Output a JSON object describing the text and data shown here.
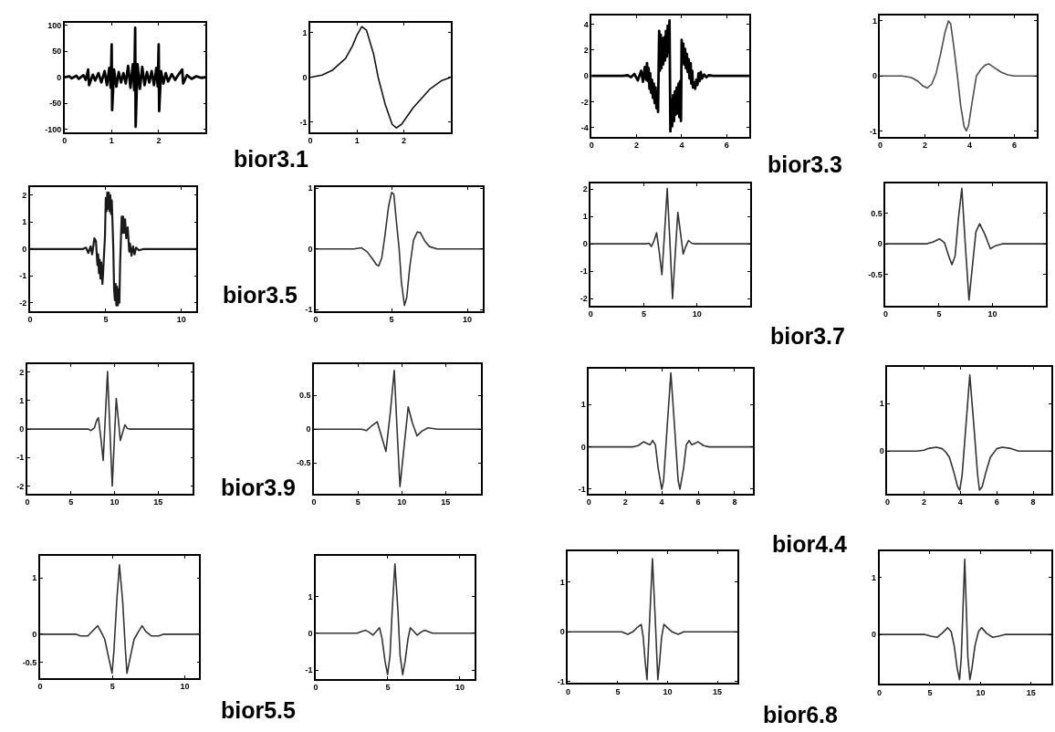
{
  "chart_data": [
    {
      "type": "line",
      "color": "#000000",
      "xlim": [
        0,
        3
      ],
      "ylim": [
        -105,
        105
      ],
      "xticks": [
        0,
        1,
        2
      ],
      "yticks": [
        -100,
        -50,
        0,
        50,
        100
      ],
      "annotations": [
        "bior3.1"
      ],
      "x": [
        0,
        0.1,
        0.15,
        0.25,
        0.3,
        0.4,
        0.45,
        0.5,
        0.52,
        0.6,
        0.65,
        0.72,
        0.78,
        0.85,
        0.9,
        0.95,
        0.98,
        1.0,
        1.01,
        1.05,
        1.1,
        1.15,
        1.2,
        1.25,
        1.3,
        1.35,
        1.4,
        1.45,
        1.48,
        1.5,
        1.51,
        1.55,
        1.6,
        1.65,
        1.7,
        1.75,
        1.8,
        1.85,
        1.9,
        1.95,
        1.98,
        2.0,
        2.01,
        2.05,
        2.1,
        2.15,
        2.2,
        2.28,
        2.35,
        2.42,
        2.5,
        2.52,
        2.6,
        2.7,
        2.8,
        2.9,
        3.0
      ],
      "values": [
        0,
        2,
        -2,
        3,
        -3,
        4,
        -5,
        15,
        -15,
        5,
        -6,
        8,
        -10,
        12,
        -15,
        18,
        -20,
        63,
        -63,
        15,
        -18,
        10,
        -10,
        8,
        -12,
        22,
        -20,
        25,
        -25,
        95,
        -95,
        25,
        -22,
        20,
        -15,
        10,
        -10,
        12,
        -15,
        18,
        -18,
        63,
        -65,
        12,
        -12,
        8,
        -8,
        6,
        -5,
        5,
        15,
        -12,
        4,
        -3,
        2,
        -1,
        0
      ]
    },
    {
      "type": "line",
      "color": "#111111",
      "xlim": [
        0,
        3
      ],
      "ylim": [
        -1.22,
        1.22
      ],
      "xticks": [
        0,
        1,
        2
      ],
      "yticks": [
        -1,
        0,
        1
      ],
      "x": [
        0,
        0.25,
        0.46,
        0.75,
        0.9,
        1.0,
        1.1,
        1.2,
        1.35,
        1.45,
        1.6,
        1.75,
        1.84,
        1.95,
        2.2,
        2.55,
        2.8,
        3.0
      ],
      "values": [
        0,
        0.05,
        0.15,
        0.42,
        0.7,
        0.95,
        1.13,
        1.05,
        0.53,
        0,
        -0.6,
        -1.05,
        -1.13,
        -1.05,
        -0.68,
        -0.27,
        -0.08,
        0
      ]
    },
    {
      "type": "line",
      "color": "#000000",
      "xlim": [
        0,
        7
      ],
      "ylim": [
        -4.7,
        4.7
      ],
      "xticks": [
        0,
        2,
        4,
        6
      ],
      "yticks": [
        -4,
        -2,
        0,
        2,
        4
      ],
      "annotations": [
        "bior3.3"
      ],
      "x": [
        0,
        1.4,
        1.6,
        1.75,
        1.9,
        2.05,
        2.2,
        2.28,
        2.36,
        2.42,
        2.46,
        2.5,
        2.53,
        2.57,
        2.6,
        2.64,
        2.68,
        2.72,
        2.76,
        2.8,
        2.84,
        2.88,
        2.92,
        2.95,
        3.0,
        3.03,
        3.07,
        3.1,
        3.14,
        3.18,
        3.22,
        3.26,
        3.3,
        3.34,
        3.38,
        3.42,
        3.46,
        3.5,
        3.54,
        3.58,
        3.62,
        3.66,
        3.7,
        3.74,
        3.78,
        3.82,
        3.86,
        3.9,
        3.93,
        3.97,
        4.0,
        4.03,
        4.07,
        4.11,
        4.15,
        4.19,
        4.23,
        4.27,
        4.31,
        4.35,
        4.4,
        4.43,
        4.47,
        4.5,
        4.55,
        4.6,
        4.65,
        4.7,
        4.75,
        4.8,
        4.85,
        4.9,
        5.0,
        5.1,
        5.2,
        5.4,
        7
      ],
      "values": [
        0,
        0,
        0.05,
        -0.1,
        0.15,
        -0.35,
        0.4,
        -0.45,
        0.7,
        -0.3,
        1.0,
        -0.4,
        0.6,
        -1.0,
        0.2,
        -1.3,
        -0.3,
        -1.7,
        -0.6,
        -2.1,
        -0.9,
        -2.5,
        -1.2,
        -2.8,
        3.5,
        0.4,
        3.2,
        0.6,
        2.9,
        0.9,
        3.0,
        1.2,
        3.5,
        1.5,
        3.9,
        1.8,
        4.3,
        -4.3,
        -1.8,
        -3.9,
        -1.5,
        -3.5,
        -1.2,
        -3.0,
        -0.9,
        -2.9,
        -0.6,
        -3.2,
        -0.4,
        -3.5,
        2.8,
        1.2,
        2.5,
        0.9,
        2.1,
        0.6,
        1.7,
        0.3,
        1.3,
        -0.2,
        1.0,
        -0.6,
        0.4,
        -0.9,
        -0.5,
        -1.0,
        -0.3,
        -0.7,
        0.2,
        -0.4,
        0.3,
        -0.2,
        0.1,
        -0.1,
        0.05,
        0,
        0
      ]
    },
    {
      "type": "line",
      "color": "#4d4d4d",
      "xlim": [
        0,
        7
      ],
      "ylim": [
        -1.1,
        1.1
      ],
      "xticks": [
        0,
        2,
        4,
        6
      ],
      "yticks": [
        -1,
        0,
        1
      ],
      "x": [
        0,
        1.0,
        1.4,
        1.7,
        1.9,
        2.1,
        2.3,
        2.5,
        2.7,
        2.9,
        3.05,
        3.15,
        3.3,
        3.45,
        3.6,
        3.75,
        3.85,
        3.95,
        4.1,
        4.3,
        4.5,
        4.7,
        4.85,
        5.1,
        5.4,
        5.7,
        6.0,
        7.0
      ],
      "values": [
        0,
        0,
        -0.03,
        -0.1,
        -0.18,
        -0.22,
        -0.15,
        0.05,
        0.4,
        0.8,
        1.0,
        0.95,
        0.5,
        0,
        -0.55,
        -0.92,
        -1.0,
        -0.9,
        -0.5,
        0,
        0.12,
        0.2,
        0.22,
        0.15,
        0.07,
        0.02,
        0,
        0
      ]
    },
    {
      "type": "line",
      "color": "#1a1a1a",
      "xlim": [
        0,
        11
      ],
      "ylim": [
        -2.3,
        2.3
      ],
      "xticks": [
        0,
        5,
        10
      ],
      "yticks": [
        -2,
        -1,
        0,
        1,
        2
      ],
      "annotations": [
        "bior3.5"
      ],
      "x": [
        0,
        3.5,
        3.7,
        3.85,
        4.0,
        4.1,
        4.25,
        4.35,
        4.45,
        4.5,
        4.55,
        4.6,
        4.65,
        4.7,
        4.78,
        4.85,
        4.95,
        5.0,
        5.05,
        5.1,
        5.15,
        5.2,
        5.25,
        5.3,
        5.35,
        5.4,
        5.5,
        5.55,
        5.6,
        5.65,
        5.7,
        5.75,
        5.8,
        5.85,
        5.9,
        5.95,
        6.05,
        6.1,
        6.15,
        6.2,
        6.28,
        6.35,
        6.45,
        6.55,
        6.6,
        6.7,
        6.8,
        6.9,
        7.0,
        7.2,
        7.5,
        11
      ],
      "values": [
        0,
        0,
        0.05,
        -0.15,
        0.1,
        -0.2,
        0.4,
        0.3,
        -0.6,
        -0.2,
        -0.9,
        -0.4,
        -1.1,
        -0.5,
        -1.3,
        -0.6,
        0.5,
        1.9,
        1.4,
        2.1,
        1.5,
        2.1,
        1.4,
        2.0,
        1.3,
        1.8,
        0,
        -1.5,
        -1.9,
        -1.3,
        -2.1,
        -1.4,
        -2.1,
        -1.5,
        -2.0,
        -0.5,
        1.2,
        0.6,
        1.2,
        0.6,
        1.1,
        0.4,
        0.8,
        -0.1,
        0.2,
        -0.25,
        0.1,
        -0.2,
        0.05,
        -0.05,
        0,
        0
      ]
    },
    {
      "type": "line",
      "color": "#333333",
      "xlim": [
        0,
        11
      ],
      "ylim": [
        -1.02,
        1.02
      ],
      "xticks": [
        0,
        5,
        10
      ],
      "yticks": [
        -1,
        0,
        1
      ],
      "x": [
        0,
        2.5,
        3.0,
        3.4,
        3.7,
        4.0,
        4.15,
        4.35,
        4.55,
        4.8,
        5.0,
        5.15,
        5.3,
        5.5,
        5.65,
        5.85,
        6.0,
        6.2,
        6.45,
        6.7,
        6.9,
        7.2,
        7.5,
        8,
        11
      ],
      "values": [
        0,
        0,
        0.02,
        -0.05,
        -0.15,
        -0.26,
        -0.28,
        -0.15,
        0.2,
        0.7,
        0.93,
        0.9,
        0.5,
        0,
        -0.55,
        -0.93,
        -0.8,
        -0.3,
        0.15,
        0.28,
        0.27,
        0.13,
        0.04,
        0,
        0
      ]
    },
    {
      "type": "line",
      "color": "#333333",
      "xlim": [
        0,
        15
      ],
      "ylim": [
        -2.25,
        2.2
      ],
      "xticks": [
        0,
        5,
        10
      ],
      "yticks": [
        -2,
        -1,
        0,
        1,
        2
      ],
      "annotations": [
        "bior3.7"
      ],
      "x": [
        0,
        5.2,
        5.5,
        5.7,
        5.95,
        6.2,
        6.45,
        6.7,
        6.95,
        7.2,
        7.45,
        7.7,
        7.95,
        8.2,
        8.45,
        8.7,
        8.95,
        9.2,
        9.5,
        9.8,
        15
      ],
      "values": [
        0,
        0,
        0.02,
        -0.1,
        0.1,
        0.4,
        -0.3,
        -1.13,
        0.4,
        2.02,
        0.1,
        -2.0,
        -0.4,
        1.15,
        0.4,
        -0.37,
        -0.1,
        0.12,
        0.02,
        0,
        0
      ]
    },
    {
      "type": "line",
      "color": "#333333",
      "xlim": [
        0,
        15
      ],
      "ylim": [
        -1.01,
        0.99
      ],
      "xticks": [
        0,
        5,
        10
      ],
      "yticks": [
        -0.5,
        0,
        0.5
      ],
      "x": [
        0,
        3.8,
        4.4,
        5.05,
        5.5,
        5.9,
        6.2,
        6.5,
        6.8,
        7.13,
        7.45,
        7.8,
        8.1,
        8.45,
        8.8,
        9.3,
        9.8,
        10.3,
        10.9,
        15
      ],
      "values": [
        0,
        0,
        0.03,
        0.08,
        0.02,
        -0.2,
        -0.34,
        -0.2,
        0.4,
        0.91,
        0,
        -0.92,
        -0.4,
        0.2,
        0.33,
        0.15,
        -0.08,
        -0.03,
        0,
        0
      ]
    },
    {
      "type": "line",
      "color": "#333333",
      "xlim": [
        0,
        19
      ],
      "ylim": [
        -2.26,
        2.28
      ],
      "xticks": [
        0,
        5,
        10,
        15
      ],
      "yticks": [
        -2,
        -1,
        0,
        1,
        2
      ],
      "annotations": [
        "bior3.9"
      ],
      "x": [
        0,
        7.0,
        7.3,
        7.7,
        7.95,
        8.15,
        8.45,
        8.7,
        8.95,
        9.2,
        9.47,
        9.74,
        9.97,
        10.2,
        10.45,
        10.67,
        10.95,
        11.2,
        11.45,
        11.7,
        19
      ],
      "values": [
        0,
        0,
        -0.05,
        0.05,
        0.3,
        0.4,
        -0.35,
        -1.1,
        0.45,
        2.02,
        0,
        -2.0,
        -0.45,
        1.08,
        0.3,
        -0.4,
        -0.1,
        0.15,
        0.03,
        0,
        0
      ]
    },
    {
      "type": "line",
      "color": "#333333",
      "xlim": [
        0,
        19
      ],
      "ylim": [
        -0.95,
        0.96
      ],
      "xticks": [
        0,
        5,
        10,
        15
      ],
      "yticks": [
        -0.5,
        0,
        0.5
      ],
      "x": [
        0,
        5.4,
        6.0,
        6.6,
        7.2,
        7.7,
        8.2,
        8.7,
        9.15,
        9.47,
        9.8,
        10.27,
        10.74,
        11.2,
        11.74,
        12.3,
        13.0,
        14.1,
        19
      ],
      "values": [
        0,
        0,
        -0.02,
        0.05,
        0.11,
        -0.11,
        -0.33,
        0.25,
        0.87,
        0,
        -0.85,
        -0.26,
        0.33,
        0.1,
        -0.1,
        -0.03,
        0.02,
        0,
        0
      ]
    },
    {
      "type": "line",
      "color": "#333333",
      "xlim": [
        0,
        9
      ],
      "ylim": [
        -1.1,
        1.85
      ],
      "xticks": [
        0,
        2,
        4,
        6,
        8
      ],
      "yticks": [
        -1,
        0,
        1
      ],
      "annotations": [
        "bior4.4"
      ],
      "x": [
        0,
        2.4,
        2.7,
        3.0,
        3.2,
        3.35,
        3.5,
        3.65,
        3.8,
        4.0,
        4.1,
        4.3,
        4.5,
        4.7,
        4.9,
        5.0,
        5.2,
        5.35,
        5.5,
        5.65,
        5.8,
        6.0,
        6.3,
        6.6,
        9
      ],
      "values": [
        0,
        0,
        0.03,
        0.12,
        0.08,
        0.05,
        0.15,
        0.05,
        -0.5,
        -1.0,
        -0.8,
        0.5,
        1.75,
        0.5,
        -0.8,
        -1.0,
        -0.5,
        0.05,
        0.15,
        0.05,
        0.08,
        0.12,
        0.03,
        0,
        0
      ]
    },
    {
      "type": "line",
      "color": "#333333",
      "xlim": [
        0,
        9
      ],
      "ylim": [
        -0.89,
        1.77
      ],
      "xticks": [
        0,
        2,
        4,
        6,
        8
      ],
      "yticks": [
        0,
        1
      ],
      "x": [
        0,
        1.6,
        2.0,
        2.3,
        2.7,
        3.0,
        3.2,
        3.4,
        3.65,
        3.85,
        3.97,
        4.1,
        4.3,
        4.52,
        4.75,
        4.95,
        5.05,
        5.2,
        5.4,
        5.65,
        6.0,
        6.3,
        6.7,
        7.2,
        9
      ],
      "values": [
        0,
        0,
        0.02,
        0.06,
        0.08,
        0.05,
        -0.02,
        -0.13,
        -0.45,
        -0.75,
        -0.82,
        -0.5,
        0.5,
        1.6,
        0.5,
        -0.5,
        -0.82,
        -0.75,
        -0.45,
        -0.13,
        0.05,
        0.08,
        0.06,
        0,
        0
      ]
    },
    {
      "type": "line",
      "color": "#333333",
      "xlim": [
        0,
        11
      ],
      "ylim": [
        -0.77,
        1.39
      ],
      "xticks": [
        0,
        5,
        10
      ],
      "yticks": [
        -0.5,
        0,
        1
      ],
      "annotations": [
        "bior5.5"
      ],
      "x": [
        0,
        2.5,
        2.8,
        3.3,
        3.6,
        3.98,
        4.2,
        4.47,
        4.7,
        4.97,
        5.1,
        5.3,
        5.48,
        5.7,
        5.9,
        6.0,
        6.26,
        6.49,
        6.8,
        7.05,
        7.3,
        7.7,
        8.2,
        8.5,
        11
      ],
      "values": [
        0,
        0,
        -0.03,
        -0.03,
        0.05,
        0.15,
        0.05,
        -0.09,
        -0.37,
        -0.69,
        -0.3,
        0.6,
        1.23,
        0.6,
        -0.3,
        -0.69,
        -0.37,
        -0.09,
        0.05,
        0.15,
        0.05,
        -0.03,
        -0.03,
        0,
        0
      ]
    },
    {
      "type": "line",
      "color": "#333333",
      "xlim": [
        0,
        11
      ],
      "ylim": [
        -1.23,
        2.1
      ],
      "xticks": [
        0,
        5,
        10
      ],
      "yticks": [
        -1,
        0,
        1
      ],
      "x": [
        0,
        2.5,
        2.86,
        3.2,
        3.46,
        3.7,
        3.97,
        4.2,
        4.42,
        4.6,
        4.8,
        4.98,
        5.15,
        5.3,
        5.49,
        5.7,
        5.85,
        6.03,
        6.2,
        6.4,
        6.56,
        6.8,
        7.03,
        7.3,
        7.55,
        8.1,
        11
      ],
      "values": [
        0,
        0,
        0,
        0.05,
        0.08,
        0.03,
        -0.05,
        0.05,
        0.15,
        -0.15,
        -0.75,
        -1.12,
        -0.6,
        0.6,
        1.88,
        0.6,
        -0.6,
        -1.12,
        -0.75,
        -0.15,
        0.15,
        0.05,
        -0.05,
        0.03,
        0.08,
        0,
        0
      ]
    },
    {
      "type": "line",
      "color": "#333333",
      "xlim": [
        0,
        17
      ],
      "ylim": [
        -1.03,
        1.62
      ],
      "xticks": [
        0,
        5,
        10,
        15
      ],
      "yticks": [
        -1,
        0,
        1
      ],
      "annotations": [
        "bior6.8"
      ],
      "x": [
        0,
        5.4,
        6.0,
        6.5,
        6.9,
        7.35,
        7.55,
        7.75,
        7.93,
        8.2,
        8.48,
        8.76,
        9.02,
        9.2,
        9.4,
        9.63,
        10.0,
        10.45,
        11.07,
        11.6,
        17
      ],
      "values": [
        0,
        0,
        -0.05,
        0,
        0.08,
        0.15,
        -0.1,
        -0.6,
        -0.96,
        0.25,
        1.47,
        0.25,
        -0.96,
        -0.6,
        -0.1,
        0.15,
        0.08,
        0,
        -0.05,
        0,
        0
      ]
    },
    {
      "type": "line",
      "color": "#333333",
      "xlim": [
        0,
        17
      ],
      "ylim": [
        -0.87,
        1.46
      ],
      "xticks": [
        0,
        5,
        10,
        15
      ],
      "yticks": [
        0,
        1
      ],
      "x": [
        0,
        4.5,
        5.1,
        5.7,
        6.2,
        6.76,
        7.1,
        7.4,
        7.7,
        7.93,
        8.1,
        8.44,
        8.75,
        8.95,
        9.15,
        9.45,
        9.8,
        10.1,
        10.6,
        11.2,
        11.8,
        12.4,
        17
      ],
      "values": [
        0,
        0,
        -0.03,
        -0.05,
        0.02,
        0.12,
        0.05,
        -0.2,
        -0.6,
        -0.79,
        -0.4,
        1.32,
        -0.4,
        -0.79,
        -0.6,
        -0.2,
        0.05,
        0.12,
        0.02,
        -0.05,
        -0.03,
        0,
        0
      ]
    }
  ]
}
